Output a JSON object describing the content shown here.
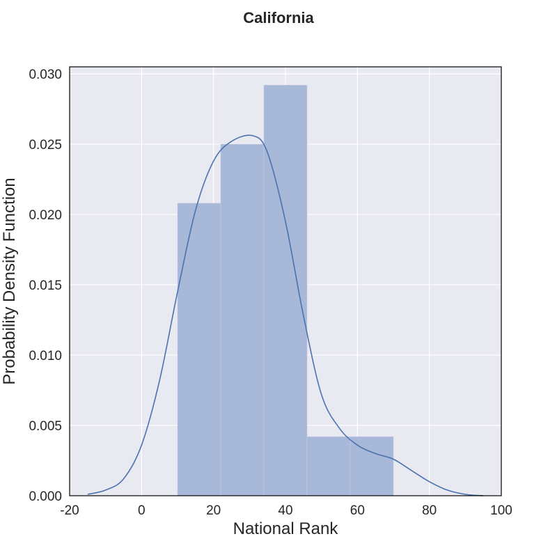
{
  "chart_data": {
    "type": "bar",
    "title": "California",
    "xlabel": "National Rank",
    "ylabel": "Probability Density Function",
    "xlim": [
      -20,
      100
    ],
    "ylim": [
      0,
      0.0305
    ],
    "x_ticks": [
      -20,
      0,
      20,
      40,
      60,
      80,
      100
    ],
    "y_ticks": [
      0.0,
      0.005,
      0.01,
      0.015,
      0.02,
      0.025,
      0.03
    ],
    "grid": true,
    "histogram": {
      "bins": [
        {
          "x0": 10,
          "x1": 22,
          "density": 0.0208
        },
        {
          "x0": 22,
          "x1": 34,
          "density": 0.025
        },
        {
          "x0": 34,
          "x1": 46,
          "density": 0.0292
        },
        {
          "x0": 46,
          "x1": 58,
          "density": 0.0042
        },
        {
          "x0": 58,
          "x1": 70,
          "density": 0.0042
        }
      ]
    },
    "kde_line": {
      "x": [
        -15,
        -10,
        -5,
        0,
        5,
        10,
        15,
        20,
        25,
        31,
        35,
        40,
        45,
        50,
        55,
        60,
        65,
        70,
        75,
        80,
        85,
        90,
        95
      ],
      "y": [
        0.0001,
        0.0004,
        0.0012,
        0.0036,
        0.0082,
        0.0145,
        0.0203,
        0.0238,
        0.0252,
        0.0256,
        0.0244,
        0.0195,
        0.0128,
        0.0072,
        0.0048,
        0.0036,
        0.003,
        0.0026,
        0.0018,
        0.001,
        0.0004,
        0.0001,
        0.0
      ]
    },
    "colors": {
      "plot_background": "#e8e9f1",
      "grid": "#ffffff",
      "bar_fill": "#a8b8d8",
      "kde_line": "#4c72b0",
      "axes_frame": "#000000"
    }
  }
}
